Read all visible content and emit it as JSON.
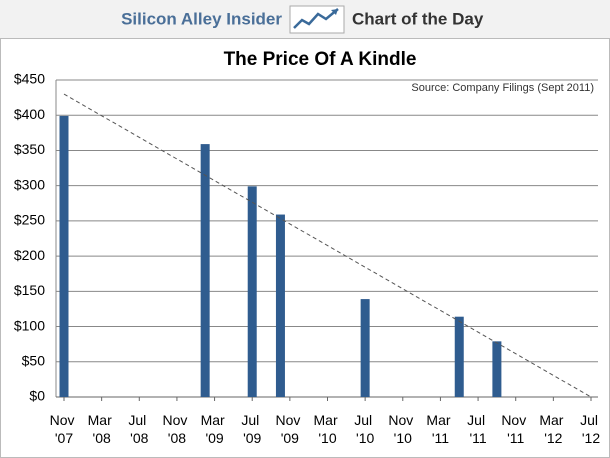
{
  "header": {
    "brand": "Silicon Alley Insider",
    "section": "Chart of the Day"
  },
  "chart_data": {
    "type": "bar",
    "title": "The Price Of A Kindle",
    "annotation": "Source: Company Filings (Sept 2011)",
    "series": [
      {
        "color": "#2f5c8f",
        "x": [
          "2007-11",
          "2009-02",
          "2009-07",
          "2009-10",
          "2010-07",
          "2011-05",
          "2011-09"
        ],
        "values": [
          399,
          359,
          299,
          259,
          139,
          114,
          79
        ]
      }
    ],
    "trendline": {
      "x": [
        "2007-11",
        "2012-07"
      ],
      "values": [
        430,
        0
      ],
      "color": "#555555"
    },
    "xlim": [
      "2007-11",
      "2012-07"
    ],
    "xticks": [
      {
        "value": "2007-11",
        "label": "Nov '07"
      },
      {
        "value": "2008-03",
        "label": "Mar '08"
      },
      {
        "value": "2008-07",
        "label": "Jul '08"
      },
      {
        "value": "2008-11",
        "label": "Nov '08"
      },
      {
        "value": "2009-03",
        "label": "Mar '09"
      },
      {
        "value": "2009-07",
        "label": "Jul '09"
      },
      {
        "value": "2009-11",
        "label": "Nov '09"
      },
      {
        "value": "2010-03",
        "label": "Mar '10"
      },
      {
        "value": "2010-07",
        "label": "Jul '10"
      },
      {
        "value": "2010-11",
        "label": "Nov '10"
      },
      {
        "value": "2011-03",
        "label": "Mar '11"
      },
      {
        "value": "2011-07",
        "label": "Jul '11"
      },
      {
        "value": "2011-11",
        "label": "Nov '11"
      },
      {
        "value": "2012-03",
        "label": "Mar '12"
      },
      {
        "value": "2012-07",
        "label": "Jul '12"
      }
    ],
    "ylim": [
      0,
      450
    ],
    "yticks": [
      {
        "value": 0,
        "label": "$0"
      },
      {
        "value": 50,
        "label": "$50"
      },
      {
        "value": 100,
        "label": "$100"
      },
      {
        "value": 150,
        "label": "$150"
      },
      {
        "value": 200,
        "label": "$200"
      },
      {
        "value": 250,
        "label": "$250"
      },
      {
        "value": 300,
        "label": "$300"
      },
      {
        "value": 350,
        "label": "$350"
      },
      {
        "value": 400,
        "label": "$400"
      },
      {
        "value": 450,
        "label": "$450"
      }
    ],
    "grid": true
  }
}
